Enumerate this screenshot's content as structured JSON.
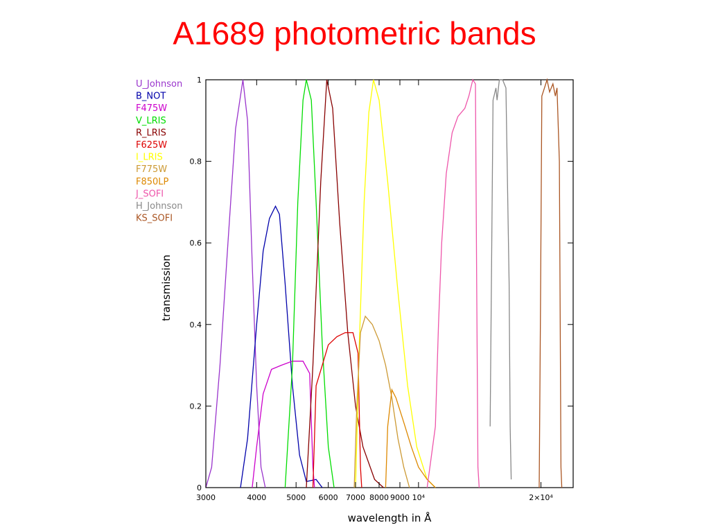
{
  "slide": {
    "title": "A1689 photometric bands"
  },
  "chart_data": {
    "type": "line",
    "title": "A1689 photometric bands",
    "xlabel": "wavelength in Å",
    "ylabel": "transmission",
    "xscale": "log",
    "xlim": [
      3000,
      24000
    ],
    "ylim": [
      0,
      1
    ],
    "grid": false,
    "legend_position": "top-left",
    "x_ticks": [
      3000,
      4000,
      5000,
      6000,
      7000,
      8000,
      9000,
      10000,
      20000
    ],
    "x_tick_labels": [
      "3000",
      "4000",
      "5000",
      "6000",
      "7000",
      "8000",
      "9000",
      "10⁴",
      "2×10⁴"
    ],
    "y_ticks": [
      0,
      0.2,
      0.4,
      0.6,
      0.8,
      1
    ],
    "y_tick_labels": [
      "0",
      "0.2",
      "0.4",
      "0.6",
      "0.8",
      "1"
    ],
    "series": [
      {
        "name": "U_Johnson",
        "color": "#9933cc",
        "points": [
          [
            3000,
            0
          ],
          [
            3100,
            0.05
          ],
          [
            3250,
            0.3
          ],
          [
            3400,
            0.6
          ],
          [
            3550,
            0.88
          ],
          [
            3700,
            1.0
          ],
          [
            3800,
            0.9
          ],
          [
            3900,
            0.55
          ],
          [
            4000,
            0.25
          ],
          [
            4100,
            0.05
          ],
          [
            4200,
            0
          ]
        ]
      },
      {
        "name": "B_NOT",
        "color": "#0000aa",
        "points": [
          [
            3650,
            0
          ],
          [
            3800,
            0.12
          ],
          [
            4000,
            0.4
          ],
          [
            4150,
            0.58
          ],
          [
            4300,
            0.66
          ],
          [
            4450,
            0.69
          ],
          [
            4550,
            0.67
          ],
          [
            4700,
            0.5
          ],
          [
            4900,
            0.25
          ],
          [
            5100,
            0.08
          ],
          [
            5300,
            0.015
          ],
          [
            5600,
            0.02
          ],
          [
            5800,
            0
          ]
        ]
      },
      {
        "name": "F475W",
        "color": "#cc00cc",
        "points": [
          [
            3900,
            0
          ],
          [
            4000,
            0.1
          ],
          [
            4150,
            0.23
          ],
          [
            4350,
            0.29
          ],
          [
            4600,
            0.3
          ],
          [
            4900,
            0.31
          ],
          [
            5200,
            0.31
          ],
          [
            5400,
            0.28
          ],
          [
            5500,
            0.05
          ],
          [
            5550,
            0
          ]
        ]
      },
      {
        "name": "V_LRIS",
        "color": "#00dd00",
        "points": [
          [
            4700,
            0
          ],
          [
            4900,
            0.3
          ],
          [
            5050,
            0.7
          ],
          [
            5200,
            0.95
          ],
          [
            5300,
            1.0
          ],
          [
            5450,
            0.95
          ],
          [
            5600,
            0.7
          ],
          [
            5800,
            0.35
          ],
          [
            6000,
            0.1
          ],
          [
            6200,
            0
          ]
        ]
      },
      {
        "name": "R_LRIS",
        "color": "#880000",
        "points": [
          [
            5300,
            0
          ],
          [
            5500,
            0.3
          ],
          [
            5750,
            0.75
          ],
          [
            5950,
            1.0
          ],
          [
            6150,
            0.93
          ],
          [
            6400,
            0.65
          ],
          [
            6700,
            0.38
          ],
          [
            7000,
            0.2
          ],
          [
            7300,
            0.1
          ],
          [
            7800,
            0.02
          ],
          [
            8200,
            0
          ]
        ]
      },
      {
        "name": "F625W",
        "color": "#dd0000",
        "points": [
          [
            5500,
            0
          ],
          [
            5600,
            0.25
          ],
          [
            5800,
            0.3
          ],
          [
            6000,
            0.35
          ],
          [
            6300,
            0.37
          ],
          [
            6600,
            0.38
          ],
          [
            6900,
            0.38
          ],
          [
            7100,
            0.33
          ],
          [
            7200,
            0.05
          ],
          [
            7250,
            0
          ]
        ]
      },
      {
        "name": "I_LRIS",
        "color": "#ffff00",
        "points": [
          [
            7000,
            0
          ],
          [
            7150,
            0.35
          ],
          [
            7350,
            0.7
          ],
          [
            7550,
            0.92
          ],
          [
            7750,
            1.0
          ],
          [
            8000,
            0.95
          ],
          [
            8400,
            0.75
          ],
          [
            8900,
            0.48
          ],
          [
            9400,
            0.25
          ],
          [
            9900,
            0.1
          ],
          [
            10500,
            0.02
          ],
          [
            11000,
            0
          ]
        ]
      },
      {
        "name": "F775W",
        "color": "#cc9933",
        "points": [
          [
            6950,
            0
          ],
          [
            7050,
            0.2
          ],
          [
            7200,
            0.38
          ],
          [
            7400,
            0.42
          ],
          [
            7700,
            0.4
          ],
          [
            8000,
            0.36
          ],
          [
            8300,
            0.3
          ],
          [
            8600,
            0.22
          ],
          [
            8900,
            0.12
          ],
          [
            9200,
            0.05
          ],
          [
            9500,
            0
          ]
        ]
      },
      {
        "name": "F850LP",
        "color": "#dd8800",
        "points": [
          [
            8300,
            0
          ],
          [
            8400,
            0.15
          ],
          [
            8600,
            0.24
          ],
          [
            8800,
            0.22
          ],
          [
            9200,
            0.16
          ],
          [
            9600,
            0.1
          ],
          [
            10000,
            0.05
          ],
          [
            10500,
            0.02
          ],
          [
            11000,
            0
          ]
        ]
      },
      {
        "name": "J_SOFI",
        "color": "#ee55aa",
        "points": [
          [
            10500,
            0
          ],
          [
            11000,
            0.15
          ],
          [
            11200,
            0.4
          ],
          [
            11400,
            0.6
          ],
          [
            11700,
            0.77
          ],
          [
            12100,
            0.87
          ],
          [
            12500,
            0.91
          ],
          [
            13000,
            0.93
          ],
          [
            13300,
            0.96
          ],
          [
            13600,
            1.0
          ],
          [
            13800,
            0.99
          ],
          [
            13900,
            0.5
          ],
          [
            14000,
            0.05
          ],
          [
            14100,
            0
          ]
        ]
      },
      {
        "name": "H_Johnson",
        "color": "#888888",
        "points": [
          [
            15000,
            0.15
          ],
          [
            15250,
            0.95
          ],
          [
            15500,
            0.98
          ],
          [
            15600,
            0.95
          ],
          [
            15800,
            1.0
          ],
          [
            16100,
            1.0
          ],
          [
            16400,
            0.98
          ],
          [
            16700,
            0.5
          ],
          [
            16800,
            0.15
          ],
          [
            16900,
            0.02
          ]
        ]
      },
      {
        "name": "KS_SOFI",
        "color": "#aa5522",
        "points": [
          [
            19800,
            0
          ],
          [
            19950,
            0.45
          ],
          [
            20100,
            0.96
          ],
          [
            20400,
            0.98
          ],
          [
            20700,
            1.0
          ],
          [
            21000,
            0.97
          ],
          [
            21400,
            0.99
          ],
          [
            21700,
            0.96
          ],
          [
            21900,
            0.98
          ],
          [
            22200,
            0.8
          ],
          [
            22400,
            0.05
          ],
          [
            22500,
            0
          ]
        ]
      }
    ]
  }
}
